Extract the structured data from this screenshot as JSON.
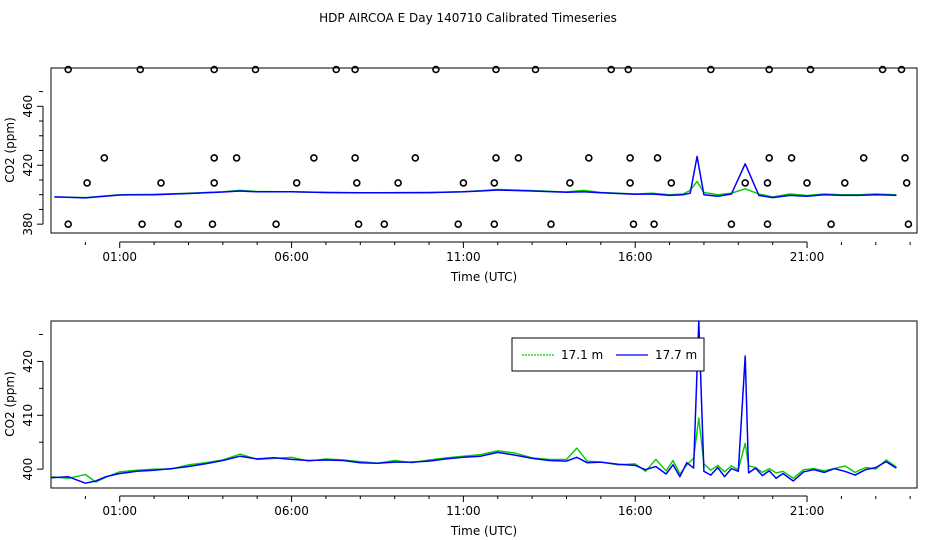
{
  "figure": {
    "title": "HDP AIRCOA E  Day 140710  Calibrated Timeseries"
  },
  "chart_data": [
    {
      "type": "scatter",
      "panel": "top",
      "xlabel": "Time (UTC)",
      "ylabel": "CO2 (ppm)",
      "xlim": [
        -1.0,
        24.2
      ],
      "ylim": [
        374,
        486
      ],
      "x_ticks": [
        1,
        6,
        11,
        16,
        21
      ],
      "x_tick_labels": [
        "01:00",
        "06:00",
        "11:00",
        "16:00",
        "21:00"
      ],
      "y_ticks": [
        380,
        420,
        460
      ],
      "y_tick_labels": [
        "380",
        "420",
        "460"
      ],
      "grid": false,
      "series": [
        {
          "name": "17.1 m",
          "color": "#00cc00",
          "x": [
            -0.9,
            0.0,
            1.0,
            2.0,
            3.0,
            4.0,
            4.5,
            5.0,
            6.0,
            7.0,
            8.0,
            9.0,
            10.0,
            11.0,
            11.5,
            12.0,
            13.0,
            14.0,
            14.5,
            15.0,
            16.0,
            16.5,
            17.0,
            17.4,
            17.6,
            17.8,
            18.0,
            18.4,
            18.8,
            19.2,
            19.6,
            20.0,
            20.5,
            21.0,
            21.5,
            22.0,
            22.5,
            23.0,
            23.6
          ],
          "values": [
            398.5,
            398.0,
            400.0,
            400.3,
            401.0,
            402.0,
            403.0,
            402.2,
            402.0,
            401.5,
            401.3,
            401.4,
            401.5,
            402.0,
            402.7,
            403.5,
            402.8,
            401.8,
            403.0,
            401.5,
            400.5,
            401.0,
            400.0,
            400.5,
            403.0,
            409.0,
            401.5,
            400.0,
            401.0,
            404.0,
            400.5,
            398.5,
            400.5,
            399.5,
            400.5,
            400.0,
            400.0,
            400.5,
            400.0
          ]
        },
        {
          "name": "17.7 m",
          "color": "#0000ff",
          "x": [
            -0.9,
            0.0,
            1.0,
            2.0,
            3.0,
            4.0,
            4.5,
            5.0,
            6.0,
            7.0,
            8.0,
            9.0,
            10.0,
            11.0,
            11.5,
            12.0,
            13.0,
            14.0,
            14.5,
            15.0,
            16.0,
            16.5,
            17.0,
            17.4,
            17.6,
            17.8,
            18.0,
            18.4,
            18.8,
            19.2,
            19.6,
            20.0,
            20.5,
            21.0,
            21.5,
            22.0,
            22.5,
            23.0,
            23.6
          ],
          "values": [
            398.5,
            397.8,
            399.8,
            400.0,
            400.8,
            401.8,
            402.5,
            402.0,
            402.0,
            401.5,
            401.3,
            401.3,
            401.4,
            402.0,
            402.5,
            403.2,
            402.5,
            401.6,
            402.0,
            401.3,
            400.3,
            400.5,
            399.5,
            400.0,
            401.0,
            426.0,
            400.0,
            399.0,
            400.5,
            421.0,
            399.5,
            398.0,
            399.5,
            399.0,
            400.0,
            399.5,
            399.5,
            400.0,
            399.5
          ]
        }
      ],
      "markers": {
        "x": [
          -0.5,
          1.6,
          3.75,
          4.95,
          7.3,
          7.85,
          10.2,
          11.95,
          13.1,
          15.3,
          15.8,
          18.2,
          19.9,
          21.1,
          23.2,
          23.75,
          0.05,
          2.2,
          3.75,
          6.15,
          7.9,
          9.1,
          11.0,
          11.9,
          14.1,
          15.85,
          17.05,
          19.2,
          19.85,
          21.0,
          22.1,
          23.9,
          0.55,
          3.75,
          4.4,
          6.65,
          7.85,
          9.6,
          11.95,
          12.6,
          14.65,
          15.85,
          16.65,
          19.9,
          20.55,
          22.65,
          23.85,
          -0.5,
          1.65,
          2.7,
          3.7,
          5.55,
          7.95,
          8.7,
          10.85,
          11.9,
          13.55,
          15.95,
          16.55,
          18.8,
          19.85,
          21.7,
          23.95
        ],
        "values": [
          485,
          485,
          485,
          485,
          485,
          485,
          485,
          485,
          485,
          485,
          485,
          485,
          485,
          485,
          485,
          485,
          408,
          408,
          408,
          408,
          408,
          408,
          408,
          408,
          408,
          408,
          408,
          408,
          408,
          408,
          408,
          408,
          425,
          425,
          425,
          425,
          425,
          425,
          425,
          425,
          425,
          425,
          425,
          425,
          425,
          425,
          425,
          380,
          380,
          380,
          380,
          380,
          380,
          380,
          380,
          380,
          380,
          380,
          380,
          380,
          380,
          380,
          380
        ]
      }
    },
    {
      "type": "line",
      "panel": "bottom",
      "xlabel": "Time (UTC)",
      "ylabel": "CO2 (ppm)",
      "xlim": [
        -1.0,
        24.2
      ],
      "ylim": [
        396.5,
        427.5
      ],
      "x_ticks": [
        1,
        6,
        11,
        16,
        21
      ],
      "x_tick_labels": [
        "01:00",
        "06:00",
        "11:00",
        "16:00",
        "21:00"
      ],
      "y_ticks": [
        400,
        410,
        420
      ],
      "y_tick_labels": [
        "400",
        "410",
        "420"
      ],
      "grid": false,
      "legend_position": "top-center",
      "series": [
        {
          "name": "17.1 m",
          "color": "#00cc00",
          "x": [
            -1.0,
            -0.5,
            0.0,
            0.3,
            0.6,
            1.0,
            1.5,
            2.0,
            2.5,
            3.0,
            3.5,
            4.0,
            4.5,
            5.0,
            5.5,
            6.0,
            6.5,
            7.0,
            7.5,
            8.0,
            8.5,
            9.0,
            9.5,
            10.0,
            10.5,
            11.0,
            11.5,
            12.0,
            12.5,
            13.0,
            13.5,
            14.0,
            14.3,
            14.6,
            15.0,
            15.5,
            16.0,
            16.3,
            16.6,
            16.9,
            17.1,
            17.3,
            17.5,
            17.7,
            17.85,
            18.0,
            18.2,
            18.4,
            18.6,
            18.8,
            19.0,
            19.2,
            19.3,
            19.5,
            19.7,
            19.9,
            20.1,
            20.3,
            20.6,
            20.9,
            21.2,
            21.5,
            21.8,
            22.1,
            22.4,
            22.7,
            23.0,
            23.3,
            23.6
          ],
          "values": [
            398.6,
            398.3,
            399.0,
            397.6,
            398.5,
            399.5,
            399.8,
            400.0,
            400.0,
            400.8,
            401.2,
            401.7,
            402.8,
            401.8,
            402.0,
            402.2,
            401.5,
            401.9,
            401.7,
            401.4,
            401.1,
            401.6,
            401.2,
            401.7,
            402.1,
            402.4,
            402.7,
            403.4,
            403.0,
            402.1,
            401.8,
            401.8,
            403.9,
            401.5,
            401.3,
            400.8,
            401.0,
            399.6,
            401.8,
            399.7,
            401.6,
            399.1,
            400.8,
            402.0,
            409.5,
            401.0,
            399.8,
            400.7,
            399.5,
            400.6,
            399.9,
            404.8,
            400.6,
            400.3,
            399.4,
            400.1,
            399.3,
            399.6,
            398.3,
            399.9,
            400.1,
            399.7,
            400.1,
            400.6,
            399.4,
            400.3,
            400.0,
            401.7,
            400.4
          ]
        },
        {
          "name": "17.7 m",
          "color": "#0000ff",
          "x": [
            -1.0,
            -0.5,
            0.0,
            0.3,
            0.6,
            1.0,
            1.5,
            2.0,
            2.5,
            3.0,
            3.5,
            4.0,
            4.5,
            5.0,
            5.5,
            6.0,
            6.5,
            7.0,
            7.5,
            8.0,
            8.5,
            9.0,
            9.5,
            10.0,
            10.5,
            11.0,
            11.5,
            12.0,
            12.5,
            13.0,
            13.5,
            14.0,
            14.3,
            14.6,
            15.0,
            15.5,
            16.0,
            16.3,
            16.6,
            16.9,
            17.1,
            17.3,
            17.5,
            17.7,
            17.85,
            18.0,
            18.2,
            18.4,
            18.6,
            18.8,
            19.0,
            19.2,
            19.3,
            19.5,
            19.7,
            19.9,
            20.1,
            20.3,
            20.6,
            20.9,
            21.2,
            21.5,
            21.8,
            22.1,
            22.4,
            22.7,
            23.0,
            23.3,
            23.6
          ],
          "values": [
            398.4,
            398.6,
            397.4,
            397.8,
            398.6,
            399.2,
            399.6,
            399.8,
            400.1,
            400.5,
            401.0,
            401.6,
            402.4,
            401.9,
            402.1,
            401.8,
            401.6,
            401.7,
            401.6,
            401.2,
            401.1,
            401.3,
            401.3,
            401.5,
            401.9,
            402.2,
            402.4,
            403.1,
            402.6,
            402.0,
            401.6,
            401.5,
            402.2,
            401.2,
            401.3,
            400.9,
            400.7,
            399.9,
            400.5,
            399.1,
            400.8,
            398.6,
            401.2,
            400.2,
            427.5,
            399.6,
            398.9,
            400.3,
            398.6,
            400.1,
            399.6,
            421.0,
            399.3,
            400.2,
            398.8,
            399.7,
            398.3,
            399.2,
            397.8,
            399.5,
            399.9,
            399.4,
            400.1,
            399.6,
            398.9,
            399.9,
            400.3,
            401.4,
            400.2
          ]
        }
      ]
    }
  ]
}
